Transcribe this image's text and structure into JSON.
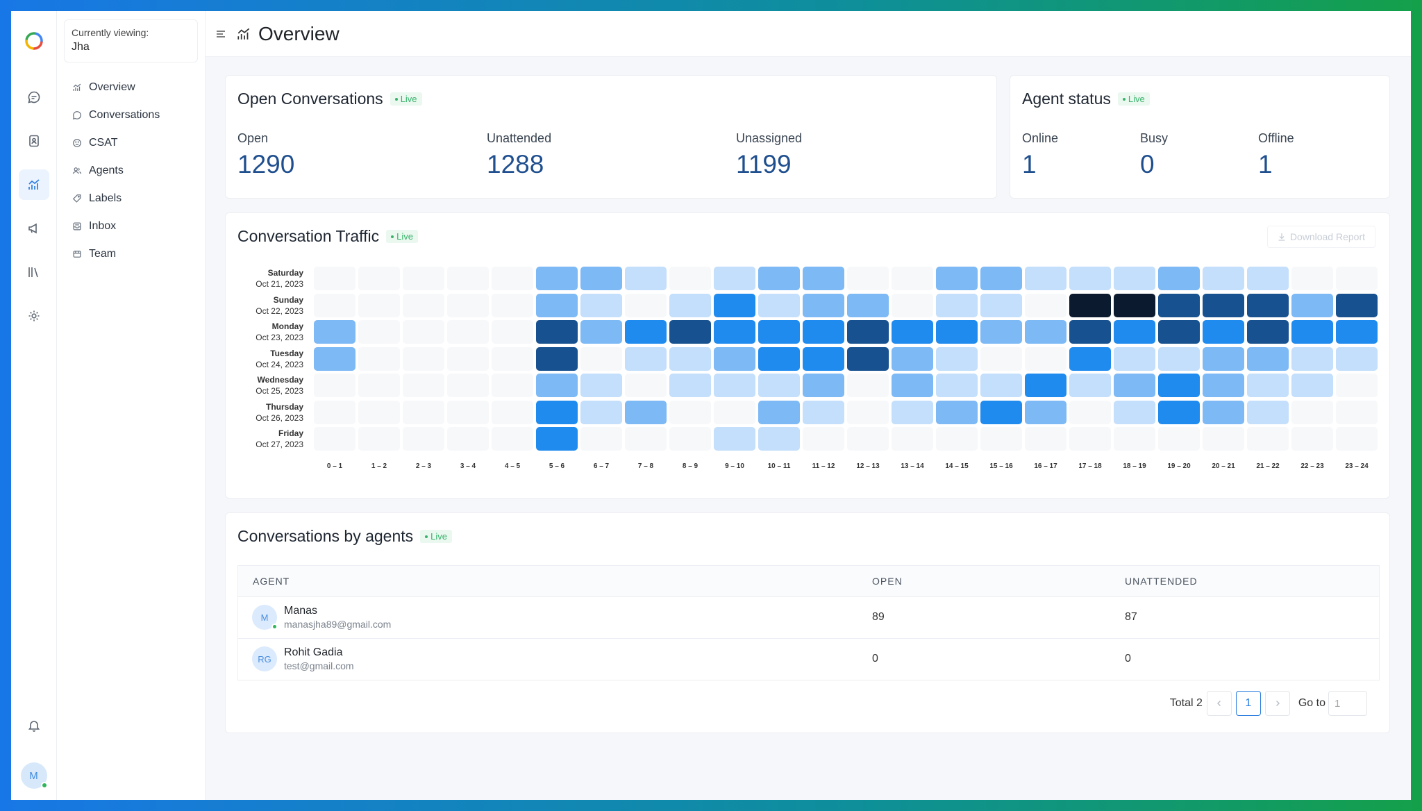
{
  "sidebar": {
    "viewing_label": "Currently viewing:",
    "viewing_value": "Jha",
    "items": [
      {
        "label": "Overview",
        "icon": "chart-line-icon"
      },
      {
        "label": "Conversations",
        "icon": "chat-bubble-icon"
      },
      {
        "label": "CSAT",
        "icon": "smiley-icon"
      },
      {
        "label": "Agents",
        "icon": "users-icon"
      },
      {
        "label": "Labels",
        "icon": "tag-icon"
      },
      {
        "label": "Inbox",
        "icon": "inbox-icon"
      },
      {
        "label": "Team",
        "icon": "team-icon"
      }
    ]
  },
  "rail": {
    "icons": [
      "chat-icon",
      "contacts-icon",
      "reports-icon",
      "campaigns-icon",
      "library-icon",
      "settings-icon"
    ],
    "active": "reports-icon",
    "user_initial": "M"
  },
  "header": {
    "title": "Overview"
  },
  "live_label": "Live",
  "open_conversations": {
    "title": "Open Conversations",
    "metrics": [
      {
        "label": "Open",
        "value": "1290"
      },
      {
        "label": "Unattended",
        "value": "1288"
      },
      {
        "label": "Unassigned",
        "value": "1199"
      }
    ]
  },
  "agent_status": {
    "title": "Agent status",
    "metrics": [
      {
        "label": "Online",
        "value": "1"
      },
      {
        "label": "Busy",
        "value": "0"
      },
      {
        "label": "Offline",
        "value": "1"
      }
    ]
  },
  "traffic": {
    "title": "Conversation Traffic",
    "download_label": "Download Report",
    "rows": [
      {
        "day": "Saturday",
        "date": "Oct 21, 2023"
      },
      {
        "day": "Sunday",
        "date": "Oct 22, 2023"
      },
      {
        "day": "Monday",
        "date": "Oct 23, 2023"
      },
      {
        "day": "Tuesday",
        "date": "Oct 24, 2023"
      },
      {
        "day": "Wednesday",
        "date": "Oct 25, 2023"
      },
      {
        "day": "Thursday",
        "date": "Oct 26, 2023"
      },
      {
        "day": "Friday",
        "date": "Oct 27, 2023"
      }
    ],
    "columns": [
      "0 – 1",
      "1 – 2",
      "2 – 3",
      "3 – 4",
      "4 – 5",
      "5 – 6",
      "6 – 7",
      "7 – 8",
      "8 – 9",
      "9 – 10",
      "10 – 11",
      "11 – 12",
      "12 – 13",
      "13 – 14",
      "14 – 15",
      "15 – 16",
      "16 – 17",
      "17 – 18",
      "18 – 19",
      "19 – 20",
      "20 – 21",
      "21 – 22",
      "22 – 23",
      "23 – 24"
    ],
    "levels": [
      [
        0,
        0,
        0,
        0,
        0,
        2,
        2,
        1,
        0,
        1,
        2,
        2,
        0,
        0,
        2,
        2,
        1,
        1,
        1,
        2,
        1,
        1,
        0,
        0
      ],
      [
        0,
        0,
        0,
        0,
        0,
        2,
        1,
        0,
        1,
        3,
        1,
        2,
        2,
        0,
        1,
        1,
        0,
        5,
        5,
        4,
        4,
        4,
        2,
        4
      ],
      [
        2,
        0,
        0,
        0,
        0,
        4,
        2,
        3,
        4,
        3,
        3,
        3,
        4,
        3,
        3,
        2,
        2,
        4,
        3,
        4,
        3,
        4,
        3,
        3
      ],
      [
        2,
        0,
        0,
        0,
        0,
        4,
        0,
        1,
        1,
        2,
        3,
        3,
        4,
        2,
        1,
        0,
        0,
        3,
        1,
        1,
        2,
        2,
        1,
        1
      ],
      [
        0,
        0,
        0,
        0,
        0,
        2,
        1,
        0,
        1,
        1,
        1,
        2,
        0,
        2,
        1,
        1,
        3,
        1,
        2,
        3,
        2,
        1,
        1,
        0
      ],
      [
        0,
        0,
        0,
        0,
        0,
        3,
        1,
        2,
        0,
        0,
        2,
        1,
        0,
        1,
        2,
        3,
        2,
        0,
        1,
        3,
        2,
        1,
        0,
        0
      ],
      [
        0,
        0,
        0,
        0,
        0,
        3,
        0,
        0,
        0,
        1,
        1,
        0,
        0,
        0,
        0,
        0,
        0,
        0,
        0,
        0,
        0,
        0,
        0,
        0
      ]
    ],
    "level_colors": [
      "#f7f8fa",
      "#c3dffb",
      "#7cb9f5",
      "#1f8bef",
      "#17518f",
      "#0b1a2e"
    ]
  },
  "agents_table": {
    "title": "Conversations by agents",
    "headers": [
      "AGENT",
      "OPEN",
      "UNATTENDED"
    ],
    "rows": [
      {
        "initials": "M",
        "name": "Manas",
        "email": "manasjha89@gmail.com",
        "open": "89",
        "unattended": "87",
        "online": true
      },
      {
        "initials": "RG",
        "name": "Rohit Gadia",
        "email": "test@gmail.com",
        "open": "0",
        "unattended": "0",
        "online": false
      }
    ],
    "pager": {
      "total_label": "Total 2",
      "current": "1",
      "goto_label": "Go to",
      "goto_value": "1"
    }
  }
}
